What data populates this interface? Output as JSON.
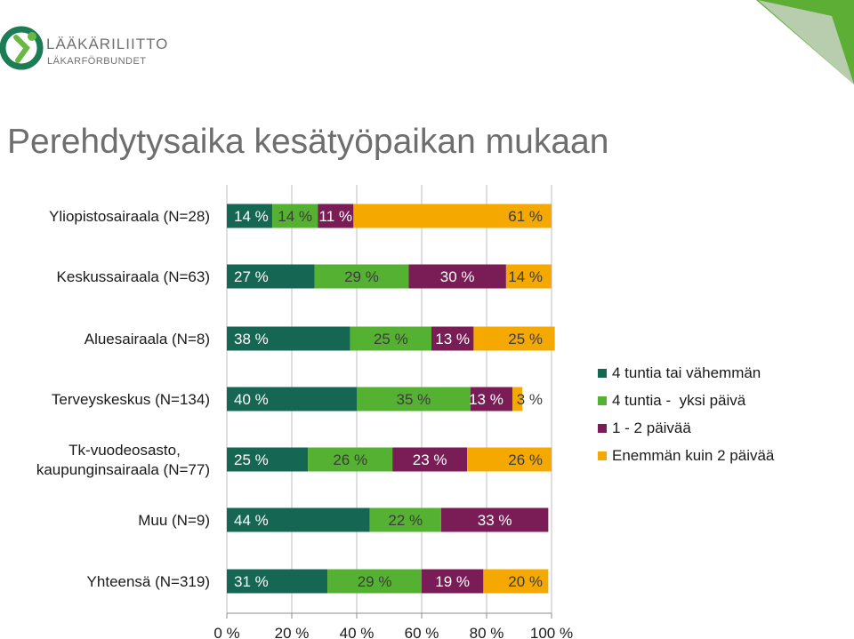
{
  "logo": {
    "line1": "LÄÄKÄRILIITTO",
    "line2": "LÄKARFÖRBUNDET"
  },
  "page_title": "Perehdytysaika kesätyöpaikan mukaan",
  "colors": {
    "series": [
      "#156753",
      "#55b131",
      "#7a1c56",
      "#f5a800"
    ],
    "corner_green": "#5dae34",
    "logo_green": "#1c7c56",
    "value_text": "#ffffff",
    "value_text_dark": "#3c3c3c"
  },
  "chart_data": {
    "type": "bar",
    "orientation": "horizontal",
    "stacked": true,
    "categories": [
      "Yliopistosairaala (N=28)",
      "Keskussairaala (N=63)",
      "Aluesairaala (N=8)",
      "Terveyskeskus (N=134)",
      "Tk-vuodeosasto, kaupunginsairaala (N=77)",
      "Muu (N=9)",
      "Yhteensä (N=319)"
    ],
    "series": [
      {
        "name": "4 tuntia tai vähemmän",
        "values": [
          14,
          27,
          38,
          40,
          25,
          44,
          31
        ]
      },
      {
        "name": "4 tuntia -  yksi päivä",
        "values": [
          14,
          29,
          25,
          35,
          26,
          22,
          29
        ]
      },
      {
        "name": "1 - 2 päivää",
        "values": [
          11,
          30,
          13,
          13,
          23,
          33,
          19
        ]
      },
      {
        "name": "Enemmän kuin 2 päivää",
        "values": [
          61,
          14,
          25,
          3,
          26,
          0,
          20
        ]
      }
    ],
    "data_labels": [
      [
        "14 %",
        "14 %",
        "11 %",
        "61 %"
      ],
      [
        "27 %",
        "29 %",
        "30 %",
        "14 %"
      ],
      [
        "38 %",
        "25 %",
        "13 %",
        "25 %"
      ],
      [
        "40 %",
        "35 %",
        "13 %",
        "3 %"
      ],
      [
        "25 %",
        "26 %",
        "23 %",
        "26 %"
      ],
      [
        "44 %",
        "22 %",
        "33 %",
        ""
      ],
      [
        "31 %",
        "29 %",
        "19 %",
        "20 %"
      ]
    ],
    "x_ticks": [
      "0 %",
      "20 %",
      "40 %",
      "60 %",
      "80 %",
      "100 %"
    ],
    "xlim": [
      0,
      100
    ],
    "grid": true,
    "legend_position": "right"
  }
}
